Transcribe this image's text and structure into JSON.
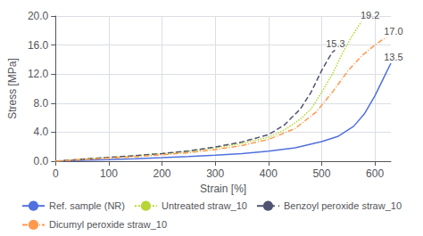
{
  "chart_data": {
    "type": "line",
    "xlabel": "Strain [%]",
    "ylabel": "Stress [MPa]",
    "xlim": [
      0,
      630
    ],
    "ylim": [
      0,
      20
    ],
    "xticks": [
      0,
      100,
      200,
      300,
      400,
      500,
      600
    ],
    "yticks": [
      {
        "value": 0,
        "label": "0.0"
      },
      {
        "value": 4,
        "label": "4.0"
      },
      {
        "value": 8,
        "label": "8.0"
      },
      {
        "value": 12,
        "label": "12.0"
      },
      {
        "value": 16,
        "label": "16.0"
      },
      {
        "value": 20,
        "label": "20.0"
      }
    ],
    "grid": true,
    "legend": "bottom",
    "annotations": [
      {
        "text": "19.2",
        "x": 573,
        "y": 19.4
      },
      {
        "text": "17.0",
        "x": 617,
        "y": 17.2
      },
      {
        "text": "15.3",
        "x": 508,
        "y": 15.5
      },
      {
        "text": "13.5",
        "x": 617,
        "y": 13.7
      }
    ],
    "series": [
      {
        "name": "Ref. sample (NR)",
        "line_style": "solid",
        "x": [
          0,
          50,
          100,
          150,
          200,
          250,
          300,
          350,
          400,
          450,
          500,
          530,
          560,
          580,
          600,
          620,
          630
        ],
        "values": [
          0,
          0.12,
          0.22,
          0.33,
          0.48,
          0.64,
          0.83,
          1.05,
          1.38,
          1.85,
          2.7,
          3.4,
          4.8,
          6.5,
          9.0,
          12.0,
          13.5
        ]
      },
      {
        "name": "Untreated straw_10",
        "line_style": "dotted",
        "x": [
          0,
          50,
          100,
          150,
          200,
          250,
          300,
          350,
          400,
          430,
          460,
          480,
          500,
          520,
          540,
          555,
          568,
          575
        ],
        "values": [
          0,
          0.28,
          0.52,
          0.76,
          1.05,
          1.35,
          1.82,
          2.45,
          3.3,
          4.3,
          5.8,
          7.2,
          9.5,
          12.0,
          15.0,
          17.0,
          18.5,
          19.2
        ]
      },
      {
        "name": "Benzoyl peroxide straw_10",
        "line_style": "dashed",
        "x": [
          0,
          50,
          100,
          150,
          200,
          250,
          300,
          350,
          400,
          430,
          460,
          480,
          500,
          510,
          520,
          525
        ],
        "values": [
          0,
          0.28,
          0.52,
          0.76,
          1.05,
          1.42,
          1.95,
          2.65,
          3.65,
          5.0,
          7.2,
          9.5,
          12.5,
          13.8,
          15.0,
          15.3
        ]
      },
      {
        "name": "Dicumyl peroxide straw_10",
        "line_style": "dashdot",
        "x": [
          0,
          50,
          100,
          150,
          200,
          250,
          300,
          350,
          400,
          450,
          490,
          520,
          550,
          575,
          600,
          615,
          622
        ],
        "values": [
          0,
          0.22,
          0.42,
          0.62,
          0.88,
          1.18,
          1.6,
          2.15,
          3.0,
          4.5,
          6.8,
          9.5,
          12.5,
          14.5,
          16.0,
          16.8,
          17.0
        ]
      }
    ]
  }
}
